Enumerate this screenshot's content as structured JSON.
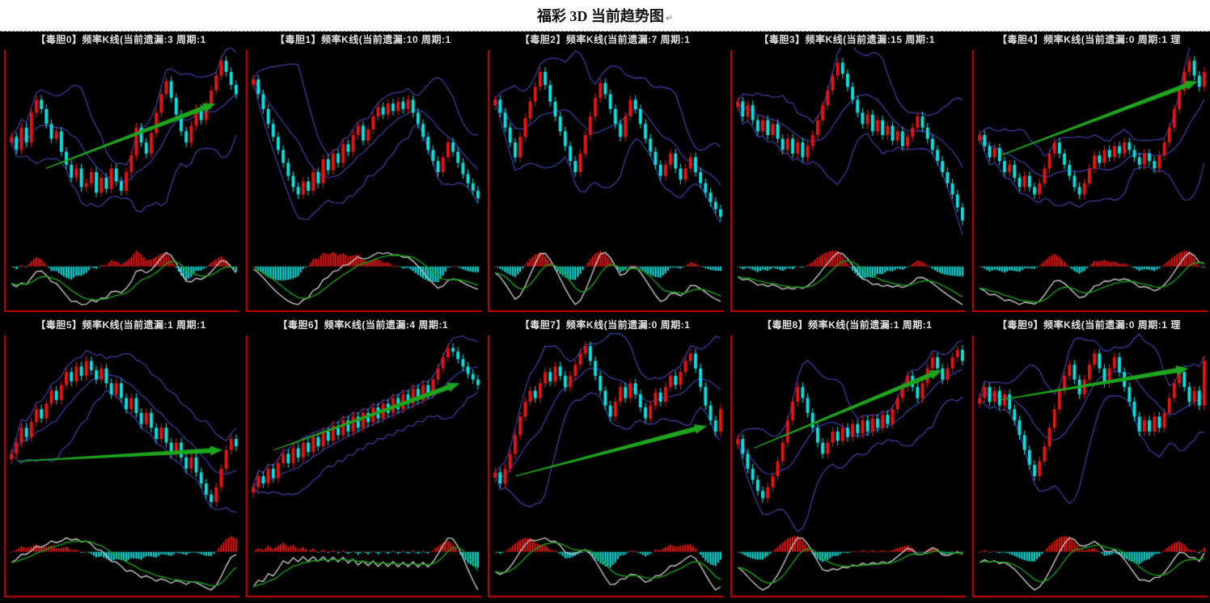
{
  "page_title": "福彩 3D 当前趋势图",
  "return_mark": "↵",
  "style": {
    "background": "#000000",
    "up_color": "#ee1111",
    "down_color": "#00e6e6",
    "band_color": "#3b3b9e",
    "axis_color": "#cc0000",
    "arrow_color": "#1ea51e",
    "macd_dif_color": "#c9c9c9",
    "macd_dea_color": "#17a017",
    "header_color": "#e2e2e2",
    "title_color": "#111111"
  },
  "chart_data": [
    {
      "type": "candlestick",
      "digit": 0,
      "header": "【毒胆0】频率K线(当前遗漏:3 周期:1",
      "label": "毒胆0",
      "current_miss": 3,
      "period": 1,
      "closes": [
        55,
        48,
        60,
        52,
        68,
        75,
        70,
        62,
        54,
        58,
        47,
        40,
        33,
        38,
        28,
        30,
        36,
        25,
        33,
        27,
        38,
        31,
        26,
        36,
        45,
        60,
        52,
        46,
        57,
        68,
        78,
        85,
        76,
        67,
        58,
        52,
        61,
        70,
        64,
        72,
        80,
        88,
        96,
        90,
        83,
        78
      ],
      "arrow": {
        "x1": 0.16,
        "y1": 0.62,
        "x2": 0.9,
        "y2": 0.27
      }
    },
    {
      "type": "candlestick",
      "digit": 1,
      "header": "【毒胆1】频率K线(当前遗漏:10 周期:1",
      "label": "毒胆1",
      "current_miss": 10,
      "period": 1,
      "closes": [
        86,
        78,
        70,
        62,
        55,
        48,
        41,
        34,
        28,
        24,
        31,
        26,
        36,
        30,
        43,
        37,
        46,
        41,
        51,
        47,
        56,
        61,
        53,
        59,
        66,
        71,
        67,
        73,
        69,
        74,
        70,
        75,
        68,
        62,
        55,
        48,
        42,
        36,
        44,
        52,
        47,
        41,
        35,
        30,
        26,
        22
      ],
      "arrow": null
    },
    {
      "type": "candlestick",
      "digit": 2,
      "header": "【毒胆2】频率K线(当前遗漏:7 周期:1",
      "label": "毒胆2",
      "current_miss": 7,
      "period": 1,
      "closes": [
        75,
        68,
        60,
        52,
        44,
        55,
        65,
        74,
        82,
        90,
        83,
        74,
        66,
        58,
        50,
        42,
        36,
        46,
        56,
        66,
        76,
        84,
        78,
        70,
        62,
        55,
        66,
        75,
        70,
        62,
        54,
        47,
        40,
        34,
        40,
        46,
        38,
        32,
        38,
        44,
        36,
        30,
        25,
        20,
        16,
        12
      ],
      "arrow": null
    },
    {
      "type": "candlestick",
      "digit": 3,
      "header": "【毒胆3】频率K线(当前遗漏:15 周期:1",
      "label": "毒胆3",
      "current_miss": 15,
      "period": 1,
      "closes": [
        74,
        66,
        72,
        64,
        58,
        64,
        56,
        62,
        54,
        48,
        54,
        46,
        52,
        44,
        50,
        56,
        64,
        72,
        80,
        88,
        95,
        89,
        82,
        75,
        68,
        62,
        67,
        58,
        64,
        56,
        61,
        53,
        58,
        50,
        55,
        60,
        66,
        60,
        54,
        48,
        42,
        36,
        30,
        24,
        17,
        10
      ],
      "arrow": null
    },
    {
      "type": "candlestick",
      "digit": 4,
      "header": "【毒胆4】频率K线(当前遗漏:0 周期:1 理",
      "label": "毒胆4",
      "current_miss": 0,
      "period": 1,
      "closes": [
        56,
        50,
        44,
        49,
        42,
        36,
        40,
        33,
        28,
        34,
        28,
        24,
        30,
        38,
        46,
        52,
        46,
        40,
        34,
        28,
        24,
        30,
        38,
        45,
        41,
        48,
        44,
        50,
        46,
        52,
        48,
        44,
        40,
        46,
        42,
        38,
        45,
        52,
        60,
        70,
        80,
        90,
        96,
        88,
        82,
        90
      ],
      "arrow": {
        "x1": 0.1,
        "y1": 0.55,
        "x2": 0.96,
        "y2": 0.15
      }
    },
    {
      "type": "candlestick",
      "digit": 5,
      "header": "【毒胆5】频率K线(当前遗漏:1 周期:1",
      "label": "毒胆5",
      "current_miss": 1,
      "period": 1,
      "closes": [
        38,
        44,
        52,
        47,
        55,
        62,
        57,
        65,
        72,
        67,
        75,
        82,
        77,
        85,
        80,
        88,
        83,
        78,
        84,
        76,
        70,
        76,
        68,
        62,
        68,
        60,
        54,
        60,
        52,
        46,
        52,
        44,
        38,
        44,
        36,
        30,
        36,
        28,
        22,
        16,
        12,
        20,
        30,
        40,
        46,
        42
      ],
      "arrow": {
        "x1": 0.04,
        "y1": 0.66,
        "x2": 0.93,
        "y2": 0.6
      }
    },
    {
      "type": "candlestick",
      "digit": 6,
      "header": "【毒胆6】频率K线(当前遗漏:4 周期:1",
      "label": "毒胆6",
      "current_miss": 4,
      "period": 1,
      "closes": [
        20,
        26,
        22,
        30,
        25,
        33,
        38,
        33,
        41,
        36,
        44,
        39,
        47,
        42,
        50,
        45,
        53,
        48,
        56,
        50,
        58,
        52,
        60,
        55,
        63,
        57,
        65,
        60,
        68,
        62,
        70,
        65,
        73,
        67,
        75,
        70,
        78,
        84,
        90,
        95,
        93,
        89,
        85,
        81,
        78,
        75
      ],
      "arrow": {
        "x1": 0.1,
        "y1": 0.6,
        "x2": 0.91,
        "y2": 0.24
      }
    },
    {
      "type": "candlestick",
      "digit": 7,
      "header": "【毒胆7】频率K线(当前遗漏:0 周期:1",
      "label": "毒胆7",
      "current_miss": 0,
      "period": 1,
      "closes": [
        28,
        22,
        30,
        38,
        48,
        58,
        66,
        72,
        68,
        76,
        82,
        77,
        85,
        80,
        74,
        80,
        86,
        92,
        96,
        88,
        80,
        72,
        64,
        58,
        66,
        74,
        68,
        76,
        70,
        63,
        57,
        64,
        71,
        66,
        74,
        80,
        75,
        82,
        88,
        92,
        84,
        74,
        64,
        56,
        50,
        62
      ],
      "arrow": {
        "x1": 0.1,
        "y1": 0.74,
        "x2": 0.93,
        "y2": 0.47
      }
    },
    {
      "type": "candlestick",
      "digit": 8,
      "header": "【毒胆8】频率K线(当前遗漏:1 周期:1",
      "label": "毒胆8",
      "current_miss": 1,
      "period": 1,
      "closes": [
        46,
        38,
        30,
        24,
        18,
        14,
        20,
        26,
        34,
        44,
        56,
        66,
        74,
        68,
        60,
        52,
        44,
        38,
        44,
        50,
        45,
        52,
        47,
        54,
        49,
        56,
        50,
        57,
        52,
        59,
        54,
        62,
        68,
        74,
        80,
        74,
        68,
        76,
        84,
        90,
        84,
        78,
        84,
        90,
        94,
        88
      ],
      "arrow": {
        "x1": 0.08,
        "y1": 0.59,
        "x2": 0.9,
        "y2": 0.17
      }
    },
    {
      "type": "candlestick",
      "digit": 9,
      "header": "【毒胆9】频率K线(当前遗漏:0 周期:1 理",
      "label": "毒胆9",
      "current_miss": 0,
      "period": 1,
      "closes": [
        68,
        74,
        66,
        72,
        64,
        70,
        62,
        56,
        48,
        40,
        32,
        26,
        34,
        42,
        52,
        62,
        72,
        80,
        86,
        78,
        70,
        78,
        86,
        92,
        84,
        76,
        84,
        90,
        82,
        74,
        66,
        58,
        50,
        56,
        50,
        58,
        52,
        60,
        68,
        76,
        82,
        74,
        66,
        72,
        64,
        88
      ],
      "arrow": {
        "x1": 0.1,
        "y1": 0.33,
        "x2": 0.92,
        "y2": 0.16
      }
    }
  ]
}
